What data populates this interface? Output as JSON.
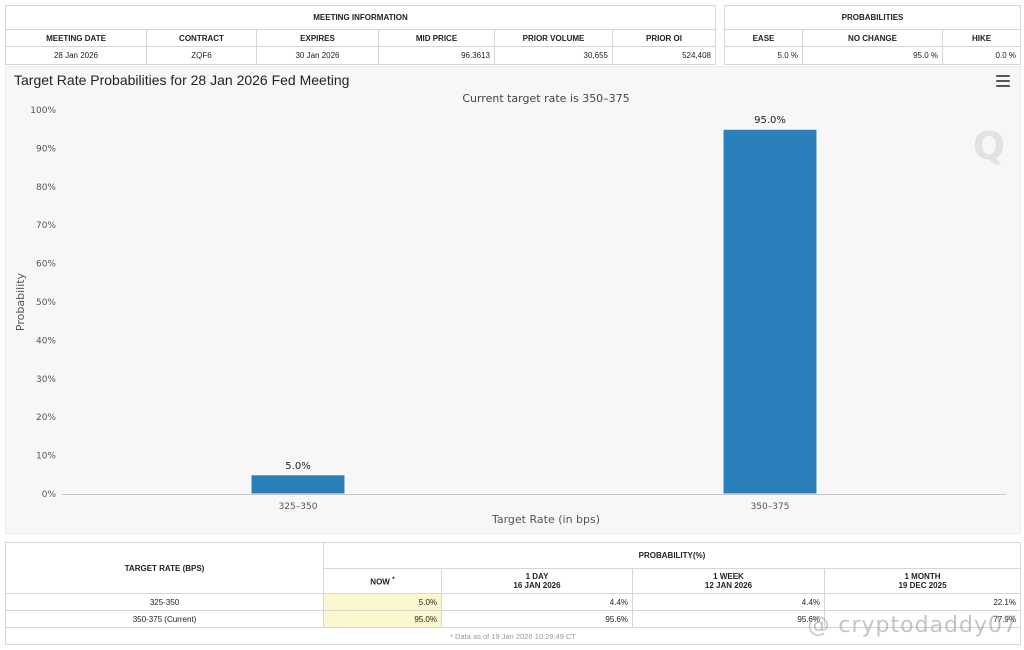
{
  "meeting_info": {
    "group_title": "MEETING INFORMATION",
    "headers": [
      "MEETING DATE",
      "CONTRACT",
      "EXPIRES",
      "MID PRICE",
      "PRIOR VOLUME",
      "PRIOR OI"
    ],
    "values": [
      "28 Jan 2026",
      "ZQF6",
      "30 Jan 2026",
      "96.3613",
      "30,655",
      "524,408"
    ]
  },
  "probabilities": {
    "group_title": "PROBABILITIES",
    "headers": [
      "EASE",
      "NO CHANGE",
      "HIKE"
    ],
    "values": [
      "5.0 %",
      "95.0 %",
      "0.0 %"
    ]
  },
  "chart": {
    "title": "Target Rate Probabilities for 28 Jan 2026 Fed Meeting",
    "watermark_glyph": "Q",
    "menu_icon": "hamburger-menu-icon"
  },
  "chart_data": {
    "type": "bar",
    "title": "Target Rate Probabilities for 28 Jan 2026 Fed Meeting",
    "subtitle": "Current target rate is 350–375",
    "categories": [
      "325–350",
      "350–375"
    ],
    "values": [
      5.0,
      95.0
    ],
    "value_labels": [
      "5.0%",
      "95.0%"
    ],
    "xlabel": "Target Rate (in bps)",
    "ylabel": "Probability",
    "ylim": [
      0,
      100
    ],
    "yticks": [
      "0%",
      "10%",
      "20%",
      "30%",
      "40%",
      "50%",
      "60%",
      "70%",
      "80%",
      "90%",
      "100%"
    ],
    "grid": false,
    "bar_color": "#2b7fbb"
  },
  "bottom_table": {
    "target_rate_header": "TARGET RATE (BPS)",
    "probability_header": "PROBABILITY(%)",
    "columns": [
      {
        "line1": "NOW",
        "marker": "*",
        "line2": ""
      },
      {
        "line1": "1 DAY",
        "line2": "16 JAN 2026"
      },
      {
        "line1": "1 WEEK",
        "line2": "12 JAN 2026"
      },
      {
        "line1": "1 MONTH",
        "line2": "19 DEC 2025"
      }
    ],
    "rows": [
      {
        "rate": "325-350",
        "values": [
          "5.0%",
          "4.4%",
          "4.4%",
          "22.1%"
        ]
      },
      {
        "rate": "350-375 (Current)",
        "values": [
          "95.0%",
          "95.6%",
          "95.6%",
          "77.9%"
        ]
      }
    ],
    "footnote": "* Data as of 19 Jan 2026 10:28:49 CT"
  },
  "watermark": {
    "text": "@ cryptodaddy07"
  }
}
